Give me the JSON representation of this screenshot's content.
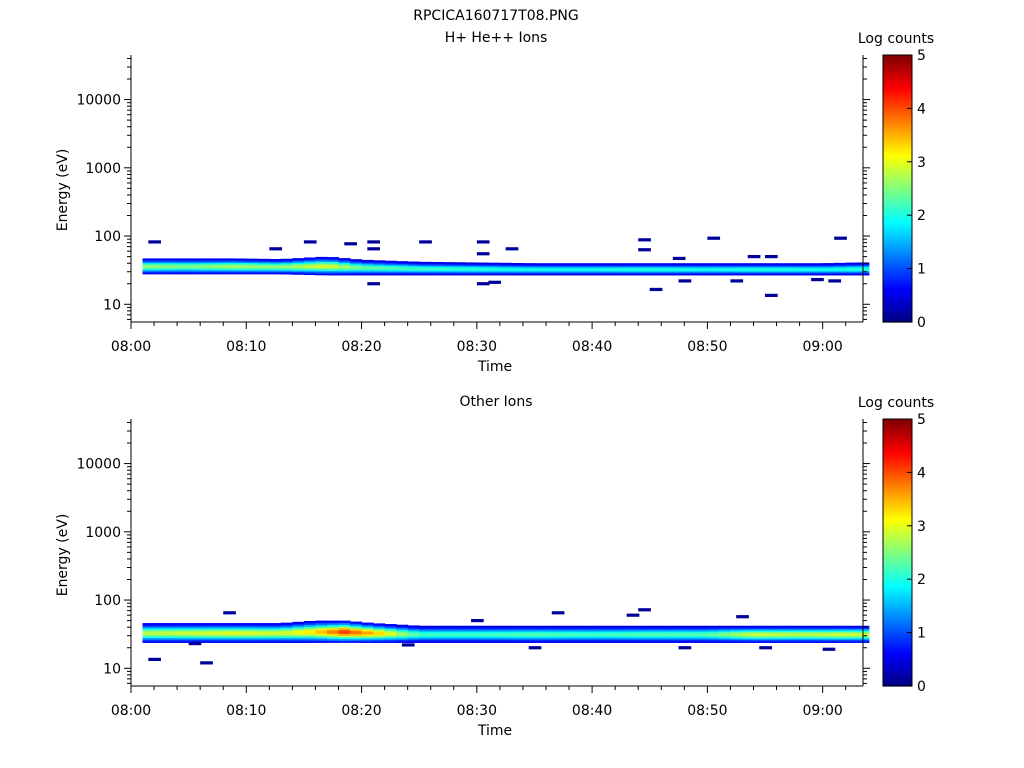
{
  "figure_title": "RPCICA160717T08.PNG",
  "chart_data": [
    {
      "type": "heatmap",
      "title": "H+ He++ Ions",
      "xlabel": "Time",
      "ylabel": "Energy (eV)",
      "x_ticks": [
        "08:00",
        "08:10",
        "08:20",
        "08:30",
        "08:40",
        "08:50",
        "09:00"
      ],
      "x_range_minutes": [
        0,
        63.5
      ],
      "y_scale": "log",
      "y_ticks": [
        "10",
        "100",
        "1000",
        "10000"
      ],
      "y_range": [
        5.5,
        45000
      ],
      "colorbar": {
        "label": "Log counts",
        "range": [
          0,
          5
        ],
        "ticks": [
          "0",
          "1",
          "2",
          "3",
          "4",
          "5"
        ]
      },
      "band": [
        {
          "t": 1.5,
          "lo": 28,
          "hi": 47,
          "peak": 2.6
        },
        {
          "t": 5,
          "lo": 28,
          "hi": 47,
          "peak": 2.5
        },
        {
          "t": 9,
          "lo": 28,
          "hi": 47,
          "peak": 2.7
        },
        {
          "t": 13,
          "lo": 28,
          "hi": 46,
          "peak": 2.6
        },
        {
          "t": 17,
          "lo": 27,
          "hi": 50,
          "peak": 3.0
        },
        {
          "t": 20,
          "lo": 27,
          "hi": 45,
          "peak": 2.4
        },
        {
          "t": 25,
          "lo": 27,
          "hi": 42,
          "peak": 2.2
        },
        {
          "t": 30,
          "lo": 27,
          "hi": 41,
          "peak": 2.1
        },
        {
          "t": 35,
          "lo": 27,
          "hi": 40,
          "peak": 2.0
        },
        {
          "t": 40,
          "lo": 27,
          "hi": 40,
          "peak": 2.0
        },
        {
          "t": 45,
          "lo": 27,
          "hi": 40,
          "peak": 2.1
        },
        {
          "t": 50,
          "lo": 27,
          "hi": 40,
          "peak": 2.0
        },
        {
          "t": 55,
          "lo": 27,
          "hi": 40,
          "peak": 2.1
        },
        {
          "t": 60,
          "lo": 27,
          "hi": 40,
          "peak": 2.0
        },
        {
          "t": 63,
          "lo": 27,
          "hi": 41,
          "peak": 2.1
        }
      ],
      "sparse_points": [
        {
          "t": 1.5,
          "e": 82
        },
        {
          "t": 12,
          "e": 65
        },
        {
          "t": 15,
          "e": 82
        },
        {
          "t": 18.5,
          "e": 77
        },
        {
          "t": 20.5,
          "e": 82
        },
        {
          "t": 20.5,
          "e": 65
        },
        {
          "t": 20.5,
          "e": 20
        },
        {
          "t": 25,
          "e": 82
        },
        {
          "t": 30,
          "e": 82
        },
        {
          "t": 30,
          "e": 55
        },
        {
          "t": 30,
          "e": 20
        },
        {
          "t": 31,
          "e": 21
        },
        {
          "t": 32.5,
          "e": 65
        },
        {
          "t": 44,
          "e": 88
        },
        {
          "t": 44,
          "e": 63
        },
        {
          "t": 45,
          "e": 16.5
        },
        {
          "t": 47,
          "e": 47
        },
        {
          "t": 47.5,
          "e": 22
        },
        {
          "t": 50,
          "e": 93
        },
        {
          "t": 52,
          "e": 22
        },
        {
          "t": 53.5,
          "e": 50
        },
        {
          "t": 55,
          "e": 50
        },
        {
          "t": 55,
          "e": 13.5
        },
        {
          "t": 59,
          "e": 23
        },
        {
          "t": 60.5,
          "e": 22
        },
        {
          "t": 61,
          "e": 93
        }
      ]
    },
    {
      "type": "heatmap",
      "title": "Other Ions",
      "xlabel": "Time",
      "ylabel": "Energy (eV)",
      "x_ticks": [
        "08:00",
        "08:10",
        "08:20",
        "08:30",
        "08:40",
        "08:50",
        "09:00"
      ],
      "x_range_minutes": [
        0,
        63.5
      ],
      "y_scale": "log",
      "y_ticks": [
        "10",
        "100",
        "1000",
        "10000"
      ],
      "y_range": [
        5.5,
        45000
      ],
      "colorbar": {
        "label": "Log counts",
        "range": [
          0,
          5
        ],
        "ticks": [
          "0",
          "1",
          "2",
          "3",
          "4",
          "5"
        ]
      },
      "band": [
        {
          "t": 1.5,
          "lo": 24,
          "hi": 46,
          "peak": 2.8
        },
        {
          "t": 5,
          "lo": 24,
          "hi": 46,
          "peak": 2.9
        },
        {
          "t": 9,
          "lo": 24,
          "hi": 46,
          "peak": 3.0
        },
        {
          "t": 13,
          "lo": 24,
          "hi": 46,
          "peak": 2.9
        },
        {
          "t": 16,
          "lo": 24,
          "hi": 50,
          "peak": 3.3
        },
        {
          "t": 18.5,
          "lo": 24,
          "hi": 50,
          "peak": 4.1
        },
        {
          "t": 21,
          "lo": 24,
          "hi": 46,
          "peak": 3.5
        },
        {
          "t": 25,
          "lo": 24,
          "hi": 42,
          "peak": 2.2
        },
        {
          "t": 30,
          "lo": 24,
          "hi": 42,
          "peak": 2.2
        },
        {
          "t": 35,
          "lo": 24,
          "hi": 42,
          "peak": 2.3
        },
        {
          "t": 40,
          "lo": 24,
          "hi": 42,
          "peak": 2.2
        },
        {
          "t": 45,
          "lo": 24,
          "hi": 42,
          "peak": 2.3
        },
        {
          "t": 50,
          "lo": 24,
          "hi": 42,
          "peak": 2.3
        },
        {
          "t": 54,
          "lo": 24,
          "hi": 42,
          "peak": 2.9
        },
        {
          "t": 58,
          "lo": 24,
          "hi": 42,
          "peak": 2.8
        },
        {
          "t": 62,
          "lo": 24,
          "hi": 42,
          "peak": 2.9
        }
      ],
      "sparse_points": [
        {
          "t": 1.5,
          "e": 13.5
        },
        {
          "t": 5,
          "e": 23
        },
        {
          "t": 6,
          "e": 12
        },
        {
          "t": 8,
          "e": 65
        },
        {
          "t": 23.5,
          "e": 22
        },
        {
          "t": 29.5,
          "e": 50
        },
        {
          "t": 34.5,
          "e": 20
        },
        {
          "t": 36.5,
          "e": 65
        },
        {
          "t": 43,
          "e": 60
        },
        {
          "t": 44,
          "e": 72
        },
        {
          "t": 47.5,
          "e": 20
        },
        {
          "t": 52.5,
          "e": 57
        },
        {
          "t": 54.5,
          "e": 20
        },
        {
          "t": 60,
          "e": 19
        }
      ]
    }
  ]
}
